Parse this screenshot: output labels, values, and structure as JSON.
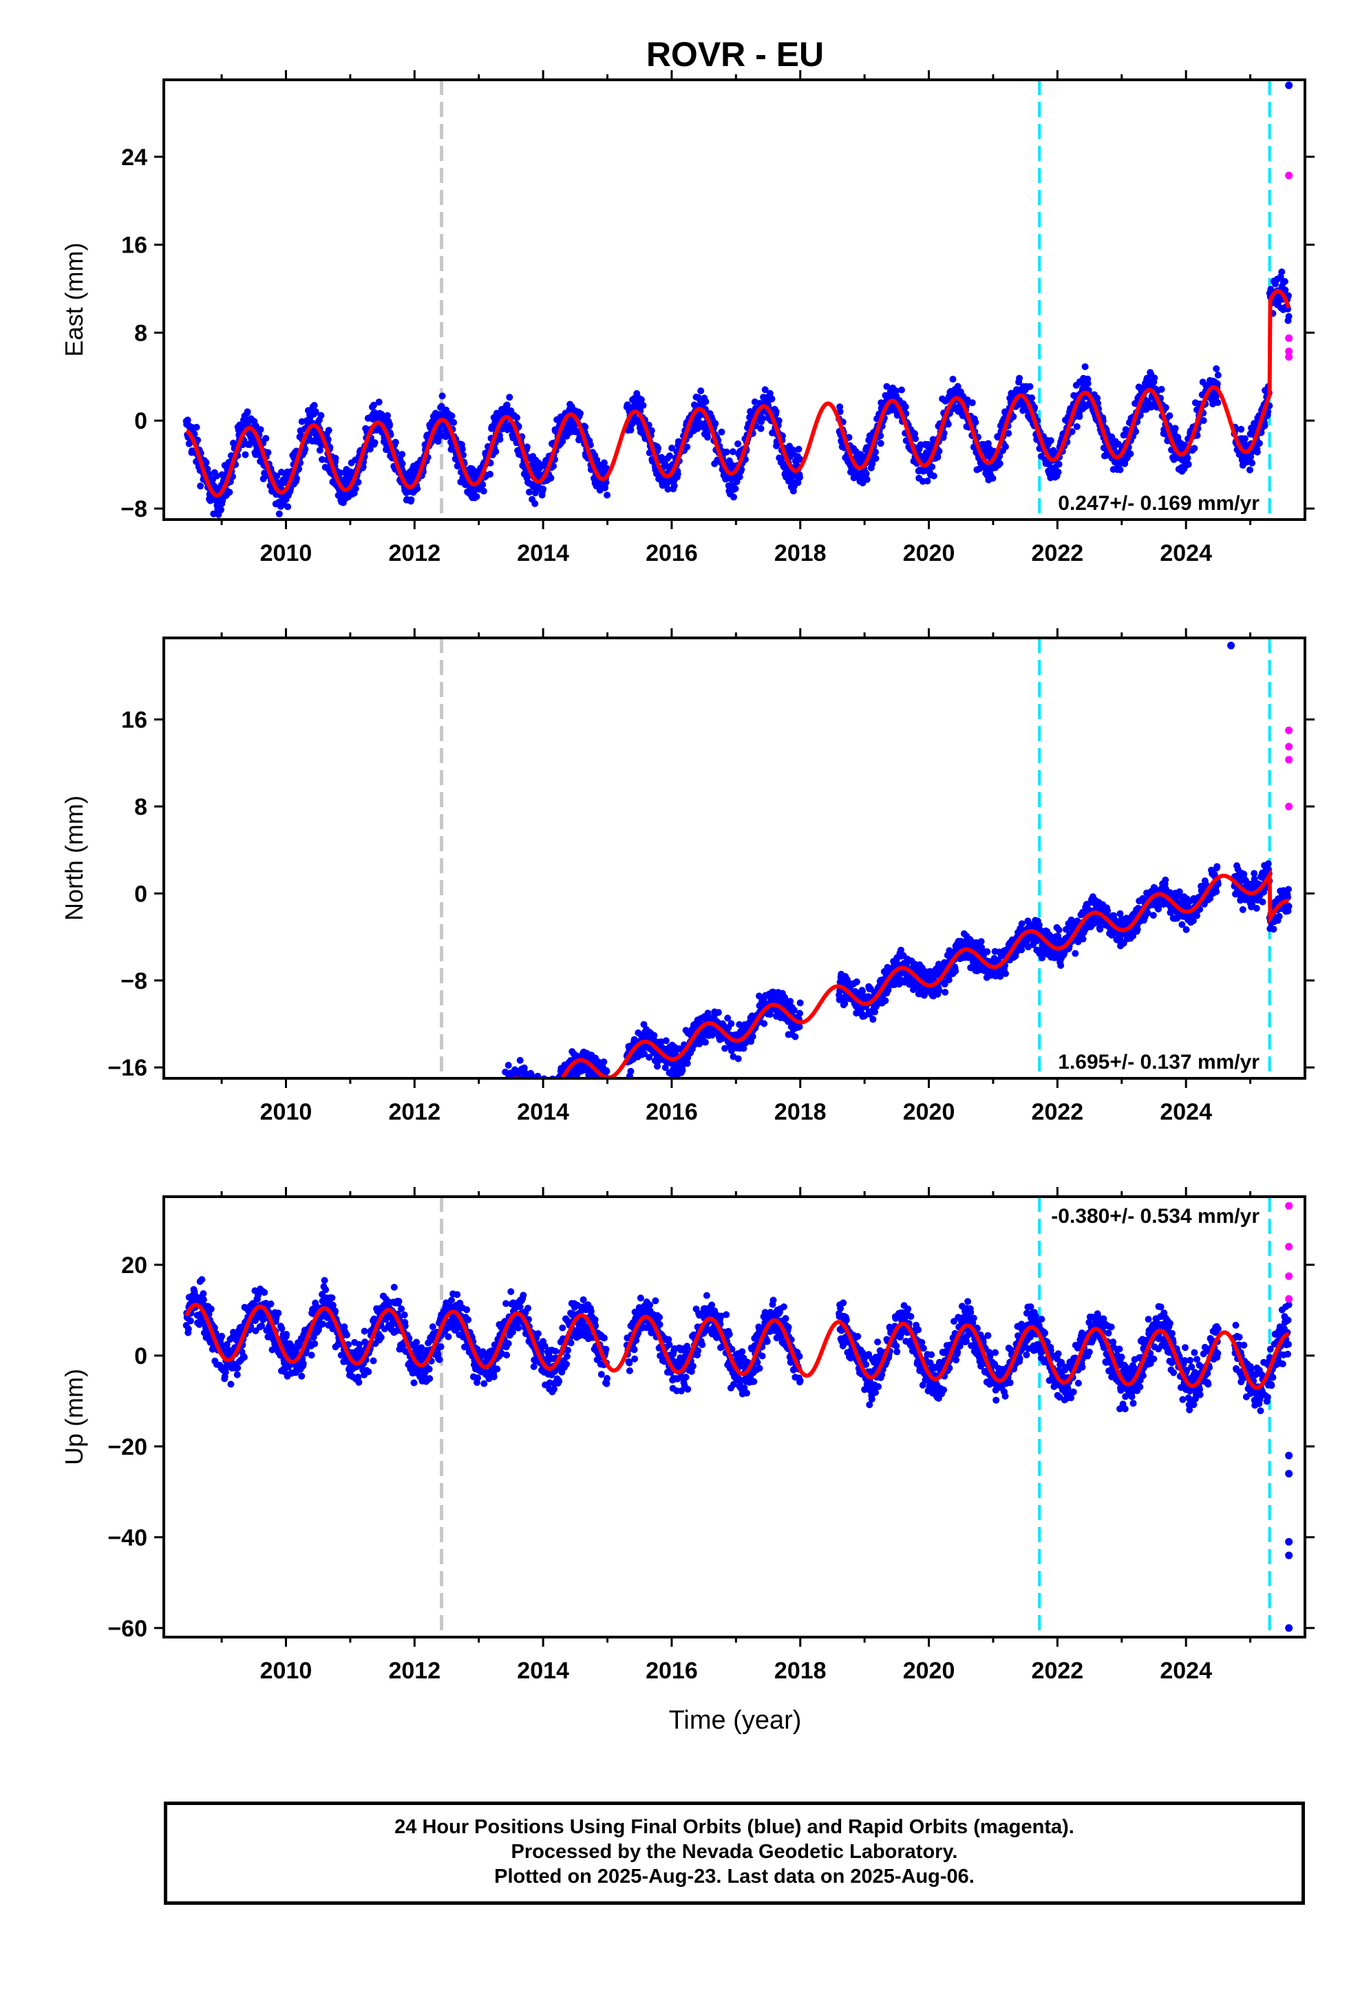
{
  "title": "ROVR - EU",
  "xlabel": "Time (year)",
  "footer": {
    "line1": "24 Hour Positions Using Final Orbits (blue) and Rapid Orbits (magenta).",
    "line2": "Processed by the Nevada Geodetic Laboratory.",
    "line3": "Plotted on 2025-Aug-23. Last data on 2025-Aug-06."
  },
  "colors": {
    "final": "#0000ff",
    "rapid": "#ff00ff",
    "model": "#ff0000",
    "equipment_change": "#00e5ff",
    "other_event": "#c8c8c8"
  },
  "chart_data": [
    {
      "type": "scatter",
      "component": "east",
      "ylabel": "East (mm)",
      "xlim": [
        2008.1,
        2025.85
      ],
      "ylim": [
        -9.0,
        31.0
      ],
      "yticks": [
        -8,
        0,
        8,
        16,
        24
      ],
      "xticks": [
        2010,
        2012,
        2014,
        2016,
        2018,
        2020,
        2022,
        2024
      ],
      "rate_label": "0.247+/- 0.169 mm/yr",
      "rate_position": "bottom-right",
      "velocity_mm_per_yr": 0.247,
      "seasonal_amplitude_mm": 3.0,
      "seasonal_peak_year_fraction": 0.43,
      "offset_mm": -1.8,
      "noise_mm": 1.6,
      "model_final_step_mm": 8.5,
      "outlier_points": [
        {
          "x": 2025.6,
          "y": 30.5
        }
      ],
      "rapid_points": [
        {
          "x": 2025.6,
          "y": 22.3
        },
        {
          "x": 2025.6,
          "y": 7.5
        },
        {
          "x": 2025.6,
          "y": 6.3
        },
        {
          "x": 2025.6,
          "y": 5.8
        }
      ]
    },
    {
      "type": "scatter",
      "component": "north",
      "ylabel": "North (mm)",
      "xlim": [
        2008.1,
        2025.85
      ],
      "ylim": [
        -17.0,
        23.5
      ],
      "yticks": [
        -16,
        -8,
        0,
        8,
        16
      ],
      "xticks": [
        2010,
        2012,
        2014,
        2016,
        2018,
        2020,
        2022,
        2024
      ],
      "rate_label": "1.695+/- 0.137 mm/yr",
      "rate_position": "bottom-right",
      "velocity_mm_per_yr": 1.695,
      "seasonal_amplitude_mm": 1.2,
      "seasonal_peak_year_fraction": 0.55,
      "offset_mm": -12.4,
      "noise_mm": 1.3,
      "model_final_step_mm": -4.0,
      "outlier_points": [
        {
          "x": 2024.7,
          "y": 22.8
        }
      ],
      "rapid_points": [
        {
          "x": 2025.6,
          "y": 15.0
        },
        {
          "x": 2025.6,
          "y": 13.5
        },
        {
          "x": 2025.6,
          "y": 12.3
        },
        {
          "x": 2025.6,
          "y": 8.0
        }
      ]
    },
    {
      "type": "scatter",
      "component": "up",
      "ylabel": "Up (mm)",
      "xlim": [
        2008.1,
        2025.85
      ],
      "ylim": [
        -62.0,
        35.0
      ],
      "yticks": [
        -60,
        -40,
        -20,
        0,
        20
      ],
      "xticks": [
        2010,
        2012,
        2014,
        2016,
        2018,
        2020,
        2022,
        2024
      ],
      "rate_label": "-0.380+/- 0.534 mm/yr",
      "rate_position": "top-right",
      "velocity_mm_per_yr": -0.38,
      "seasonal_amplitude_mm": 6.0,
      "seasonal_peak_year_fraction": 0.6,
      "offset_mm": 2.0,
      "noise_mm": 4.5,
      "model_final_step_mm": 0,
      "outlier_points": [
        {
          "x": 2025.6,
          "y": -60.0
        },
        {
          "x": 2025.6,
          "y": -44.0
        },
        {
          "x": 2025.6,
          "y": -41.0
        },
        {
          "x": 2025.6,
          "y": -26.0
        },
        {
          "x": 2025.6,
          "y": -22.0
        }
      ],
      "rapid_points": [
        {
          "x": 2025.6,
          "y": 33.0
        },
        {
          "x": 2025.6,
          "y": 24.0
        },
        {
          "x": 2025.6,
          "y": 17.5
        },
        {
          "x": 2025.6,
          "y": 12.5
        }
      ]
    }
  ],
  "events": [
    {
      "x": 2012.42,
      "kind": "other_event"
    },
    {
      "x": 2021.72,
      "kind": "equipment_change"
    },
    {
      "x": 2025.3,
      "kind": "equipment_change"
    }
  ],
  "data_span": [
    2008.45,
    2025.6
  ],
  "data_gaps": [
    [
      2015.0,
      2015.3
    ],
    [
      2018.0,
      2018.6
    ],
    [
      2024.5,
      2024.75
    ]
  ]
}
